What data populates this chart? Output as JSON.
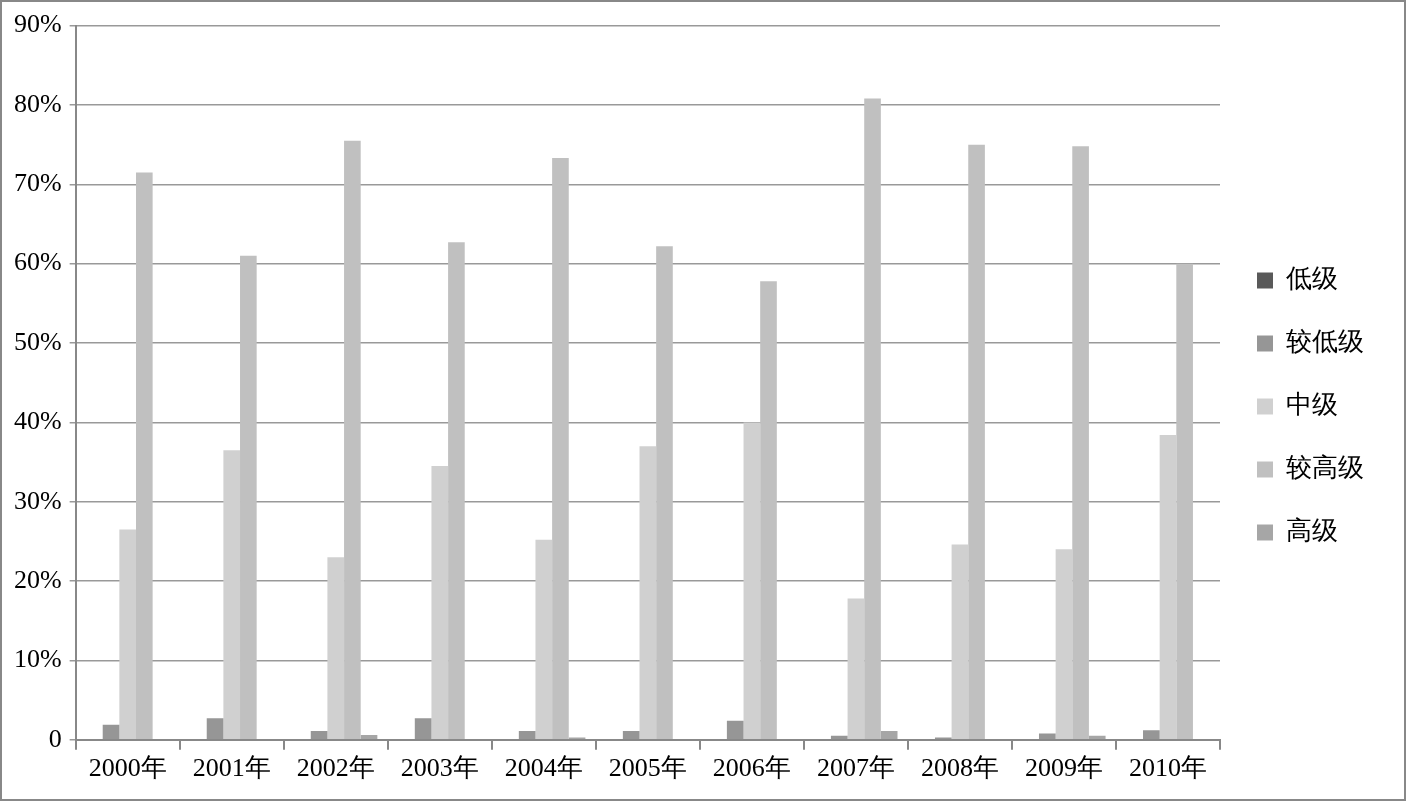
{
  "chart_data": {
    "type": "bar",
    "categories": [
      "2000年",
      "2001年",
      "2002年",
      "2003年",
      "2004年",
      "2005年",
      "2006年",
      "2007年",
      "2008年",
      "2009年",
      "2010年"
    ],
    "series": [
      {
        "name": "低级",
        "color": "#595959",
        "values": [
          0,
          0,
          0,
          0,
          0,
          0,
          0,
          0,
          0,
          0,
          0
        ]
      },
      {
        "name": "较低级",
        "color": "#969696",
        "values": [
          1.9,
          2.7,
          1.1,
          2.7,
          1.1,
          1.1,
          2.4,
          0.5,
          0.3,
          0.8,
          1.2
        ]
      },
      {
        "name": "中级",
        "color": "#d0d0d0",
        "values": [
          26.5,
          36.5,
          23,
          34.5,
          25.2,
          37,
          40,
          17.8,
          24.6,
          24,
          38.4
        ]
      },
      {
        "name": "较高级",
        "color": "#c0c0c0",
        "values": [
          71.5,
          61,
          75.5,
          62.7,
          73.3,
          62.2,
          57.8,
          80.8,
          75,
          74.8,
          60
        ]
      },
      {
        "name": "高级",
        "color": "#a6a6a6",
        "values": [
          0,
          0,
          0.6,
          0,
          0.3,
          0,
          0,
          1.1,
          0,
          0.5,
          0
        ]
      }
    ],
    "ylim": [
      0,
      90
    ],
    "yticks": [
      {
        "value": 0,
        "label": "0"
      },
      {
        "value": 10,
        "label": "10%"
      },
      {
        "value": 20,
        "label": "20%"
      },
      {
        "value": 30,
        "label": "30%"
      },
      {
        "value": 40,
        "label": "40%"
      },
      {
        "value": 50,
        "label": "50%"
      },
      {
        "value": 60,
        "label": "60%"
      },
      {
        "value": 70,
        "label": "70%"
      },
      {
        "value": 80,
        "label": "80%"
      },
      {
        "value": 90,
        "label": "90%"
      }
    ],
    "grid": "y",
    "legend": "right"
  }
}
